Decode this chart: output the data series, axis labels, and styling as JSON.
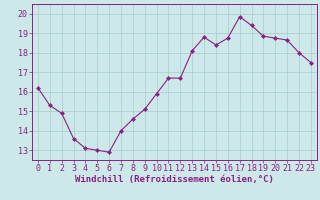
{
  "x": [
    0,
    1,
    2,
    3,
    4,
    5,
    6,
    7,
    8,
    9,
    10,
    11,
    12,
    13,
    14,
    15,
    16,
    17,
    18,
    19,
    20,
    21,
    22,
    23
  ],
  "y": [
    16.2,
    15.3,
    14.9,
    13.6,
    13.1,
    13.0,
    12.9,
    14.0,
    14.6,
    15.1,
    15.9,
    16.7,
    16.7,
    18.1,
    18.8,
    18.4,
    18.75,
    19.85,
    19.4,
    18.85,
    18.75,
    18.65,
    18.0,
    17.5
  ],
  "line_color": "#882288",
  "marker": "D",
  "marker_size": 2,
  "bg_color": "#cce8e8",
  "grid_color": "#aacccc",
  "xlabel": "Windchill (Refroidissement éolien,°C)",
  "xlabel_color": "#882288",
  "ylim": [
    12.5,
    20.5
  ],
  "yticks": [
    13,
    14,
    15,
    16,
    17,
    18,
    19,
    20
  ],
  "xlim": [
    -0.5,
    23.5
  ],
  "xticks": [
    0,
    1,
    2,
    3,
    4,
    5,
    6,
    7,
    8,
    9,
    10,
    11,
    12,
    13,
    14,
    15,
    16,
    17,
    18,
    19,
    20,
    21,
    22,
    23
  ],
  "tick_color": "#882288",
  "axis_color": "#882288",
  "font_size_xlabel": 6.5,
  "font_size_ticks": 6.0,
  "linewidth": 0.8
}
